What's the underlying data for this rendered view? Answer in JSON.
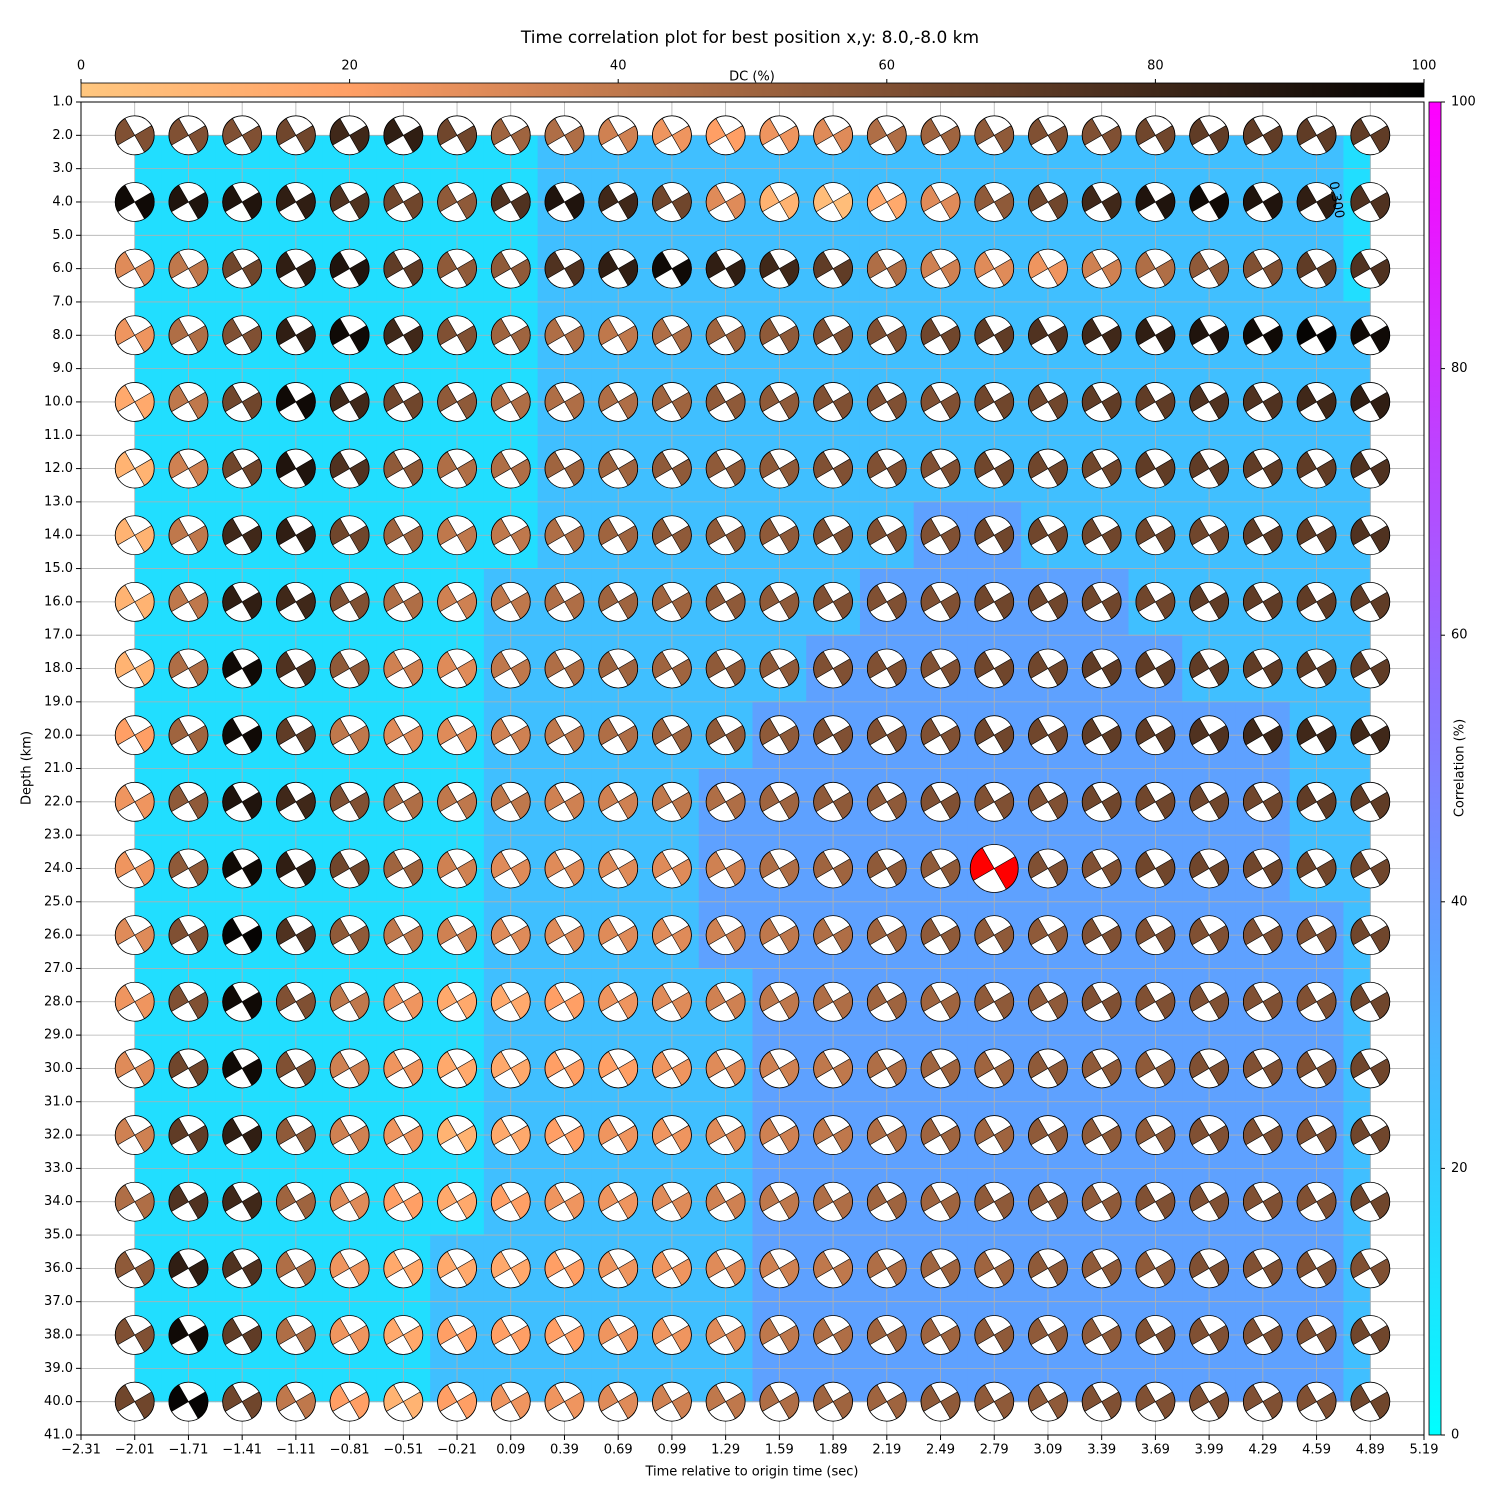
{
  "chart_data": {
    "type": "beachball_grid",
    "title": "Time correlation plot for best position x,y: 8.0,-8.0 km",
    "xlabel": "Time relative to origin time (sec)",
    "ylabel": "Depth (km)",
    "x": [
      -2.01,
      -1.71,
      -1.41,
      -1.11,
      -0.81,
      -0.51,
      -0.21,
      0.09,
      0.39,
      0.69,
      0.99,
      1.29,
      1.59,
      1.89,
      2.19,
      2.49,
      2.79,
      3.09,
      3.39,
      3.69,
      3.99,
      4.29,
      4.59,
      4.89
    ],
    "depths": [
      2,
      4,
      6,
      8,
      10,
      12,
      14,
      16,
      18,
      20,
      22,
      24,
      26,
      28,
      30,
      32,
      34,
      36,
      38,
      40
    ],
    "xlim": [
      -2.31,
      5.19
    ],
    "ylim": [
      1,
      41
    ],
    "y_inverted": true,
    "grid": true,
    "xticks": [
      {
        "value": -2.31,
        "label": "−2.31"
      },
      {
        "value": -2.01,
        "label": "−2.01"
      },
      {
        "value": -1.71,
        "label": "−1.71"
      },
      {
        "value": -1.41,
        "label": "−1.41"
      },
      {
        "value": -1.11,
        "label": "−1.11"
      },
      {
        "value": -0.81,
        "label": "−0.81"
      },
      {
        "value": -0.51,
        "label": "−0.51"
      },
      {
        "value": -0.21,
        "label": "−0.21"
      },
      0.09,
      0.39,
      0.69,
      0.99,
      1.29,
      1.59,
      1.89,
      2.19,
      2.49,
      2.79,
      3.09,
      3.39,
      3.69,
      3.99,
      4.29,
      4.59,
      4.89,
      5.19
    ],
    "yticks": [
      {
        "value": 1,
        "label": "1.0"
      },
      {
        "value": 2,
        "label": "2.0"
      },
      {
        "value": 3,
        "label": "3.0"
      },
      {
        "value": 4,
        "label": "4.0"
      },
      {
        "value": 5,
        "label": "5.0"
      },
      {
        "value": 6,
        "label": "6.0"
      },
      {
        "value": 7,
        "label": "7.0"
      },
      {
        "value": 8,
        "label": "8.0"
      },
      {
        "value": 9,
        "label": "9.0"
      },
      {
        "value": 10,
        "label": "10.0"
      },
      {
        "value": 11,
        "label": "11.0"
      },
      {
        "value": 12,
        "label": "12.0"
      },
      {
        "value": 13,
        "label": "13.0"
      },
      {
        "value": 14,
        "label": "14.0"
      },
      {
        "value": 15,
        "label": "15.0"
      },
      {
        "value": 16,
        "label": "16.0"
      },
      {
        "value": 17,
        "label": "17.0"
      },
      {
        "value": 18,
        "label": "18.0"
      },
      {
        "value": 19,
        "label": "19.0"
      },
      {
        "value": 20,
        "label": "20.0"
      },
      {
        "value": 21,
        "label": "21.0"
      },
      {
        "value": 22,
        "label": "22.0"
      },
      {
        "value": 23,
        "label": "23.0"
      },
      {
        "value": 24,
        "label": "24.0"
      },
      {
        "value": 25,
        "label": "25.0"
      },
      {
        "value": 26,
        "label": "26.0"
      },
      {
        "value": 27,
        "label": "27.0"
      },
      {
        "value": 28,
        "label": "28.0"
      },
      {
        "value": 29,
        "label": "29.0"
      },
      {
        "value": 30,
        "label": "30.0"
      },
      {
        "value": 31,
        "label": "31.0"
      },
      {
        "value": 32,
        "label": "32.0"
      },
      {
        "value": 33,
        "label": "33.0"
      },
      {
        "value": 34,
        "label": "34.0"
      },
      {
        "value": 35,
        "label": "35.0"
      },
      {
        "value": 36,
        "label": "36.0"
      },
      {
        "value": 37,
        "label": "37.0"
      },
      {
        "value": 38,
        "label": "38.0"
      },
      {
        "value": 39,
        "label": "39.0"
      },
      {
        "value": 40,
        "label": "40.0"
      },
      {
        "value": 41,
        "label": "41.0"
      }
    ],
    "dc_colorbar": {
      "label": "DC (%)",
      "colormap": "copper_r",
      "lim": [
        0,
        100
      ],
      "ticks": [
        0,
        20,
        40,
        60,
        80,
        100
      ]
    },
    "corr_colorbar": {
      "label": "Correlation (%)",
      "colormap": "cool",
      "lim": [
        0,
        100
      ],
      "ticks": [
        0,
        20,
        40,
        60,
        80,
        100
      ]
    },
    "highlight": {
      "x": 2.79,
      "depth": 24,
      "color": "#ff0000"
    },
    "annotation": "0.300",
    "dc": [
      [
        60,
        60,
        60,
        65,
        80,
        85,
        65,
        50,
        45,
        35,
        25,
        20,
        25,
        30,
        45,
        50,
        55,
        60,
        60,
        65,
        70,
        70,
        70,
        70
      ],
      [
        95,
        90,
        90,
        85,
        75,
        65,
        55,
        75,
        90,
        80,
        65,
        30,
        10,
        5,
        15,
        30,
        55,
        65,
        80,
        90,
        95,
        90,
        85,
        75
      ],
      [
        30,
        40,
        65,
        85,
        90,
        70,
        55,
        55,
        75,
        85,
        95,
        85,
        80,
        70,
        45,
        35,
        30,
        25,
        35,
        45,
        55,
        60,
        70,
        75
      ],
      [
        25,
        45,
        60,
        85,
        95,
        80,
        60,
        50,
        45,
        40,
        45,
        50,
        55,
        60,
        60,
        65,
        70,
        75,
        80,
        85,
        90,
        95,
        98,
        95
      ],
      [
        15,
        40,
        65,
        95,
        80,
        65,
        55,
        45,
        45,
        45,
        50,
        55,
        55,
        60,
        60,
        60,
        65,
        65,
        70,
        70,
        75,
        75,
        80,
        85
      ],
      [
        10,
        35,
        65,
        90,
        75,
        55,
        45,
        45,
        50,
        50,
        55,
        55,
        55,
        60,
        60,
        60,
        65,
        65,
        65,
        70,
        70,
        70,
        70,
        75
      ],
      [
        10,
        40,
        80,
        85,
        65,
        50,
        40,
        40,
        45,
        50,
        55,
        55,
        55,
        60,
        60,
        60,
        65,
        65,
        65,
        65,
        65,
        70,
        70,
        75
      ],
      [
        10,
        40,
        85,
        80,
        60,
        45,
        35,
        40,
        45,
        50,
        50,
        55,
        55,
        60,
        60,
        60,
        65,
        65,
        65,
        65,
        70,
        70,
        70,
        70
      ],
      [
        10,
        45,
        95,
        75,
        55,
        35,
        30,
        40,
        45,
        50,
        50,
        55,
        55,
        60,
        60,
        60,
        65,
        65,
        70,
        70,
        70,
        70,
        70,
        70
      ],
      [
        20,
        50,
        95,
        70,
        40,
        30,
        30,
        35,
        40,
        45,
        50,
        55,
        55,
        60,
        60,
        60,
        65,
        65,
        70,
        70,
        75,
        80,
        80,
        80
      ],
      [
        25,
        55,
        90,
        80,
        60,
        45,
        40,
        40,
        35,
        35,
        40,
        45,
        50,
        55,
        55,
        60,
        60,
        60,
        65,
        65,
        65,
        65,
        70,
        70
      ],
      [
        25,
        55,
        95,
        85,
        65,
        50,
        35,
        30,
        30,
        30,
        30,
        35,
        45,
        50,
        55,
        55,
        55,
        60,
        60,
        65,
        65,
        65,
        65,
        65
      ],
      [
        30,
        60,
        98,
        75,
        55,
        40,
        35,
        30,
        30,
        30,
        30,
        35,
        40,
        45,
        50,
        55,
        55,
        55,
        60,
        60,
        60,
        60,
        60,
        65
      ],
      [
        25,
        60,
        95,
        60,
        40,
        25,
        15,
        15,
        20,
        25,
        30,
        35,
        40,
        45,
        50,
        50,
        55,
        55,
        60,
        60,
        60,
        60,
        60,
        65
      ],
      [
        30,
        65,
        95,
        60,
        35,
        25,
        15,
        15,
        20,
        20,
        25,
        30,
        35,
        40,
        45,
        50,
        50,
        55,
        55,
        55,
        60,
        60,
        60,
        65
      ],
      [
        35,
        70,
        85,
        55,
        35,
        25,
        10,
        15,
        20,
        25,
        25,
        30,
        35,
        40,
        45,
        50,
        50,
        55,
        55,
        55,
        60,
        60,
        60,
        65
      ],
      [
        45,
        75,
        80,
        50,
        30,
        20,
        15,
        20,
        25,
        25,
        30,
        35,
        40,
        45,
        50,
        50,
        55,
        55,
        55,
        60,
        60,
        60,
        60,
        65
      ],
      [
        55,
        85,
        75,
        45,
        25,
        15,
        15,
        15,
        20,
        25,
        25,
        30,
        35,
        40,
        45,
        50,
        50,
        55,
        55,
        55,
        60,
        60,
        60,
        60
      ],
      [
        60,
        95,
        70,
        45,
        25,
        15,
        20,
        20,
        20,
        25,
        25,
        30,
        40,
        45,
        50,
        50,
        55,
        55,
        55,
        60,
        60,
        60,
        60,
        65
      ],
      [
        65,
        98,
        65,
        40,
        20,
        10,
        20,
        25,
        25,
        30,
        35,
        40,
        45,
        50,
        50,
        55,
        55,
        55,
        60,
        60,
        60,
        60,
        60,
        65
      ]
    ],
    "correlation": [
      [
        13,
        13,
        13,
        13,
        13,
        13,
        13,
        13,
        25,
        25,
        25,
        25,
        25,
        25,
        25,
        25,
        25,
        25,
        25,
        25,
        25,
        25,
        25,
        13
      ],
      [
        13,
        13,
        13,
        13,
        13,
        13,
        13,
        13,
        25,
        25,
        25,
        25,
        25,
        25,
        25,
        25,
        25,
        25,
        25,
        25,
        25,
        25,
        25,
        13
      ],
      [
        13,
        13,
        13,
        13,
        13,
        13,
        13,
        13,
        25,
        25,
        25,
        25,
        25,
        25,
        25,
        25,
        25,
        25,
        25,
        25,
        25,
        25,
        25,
        13
      ],
      [
        13,
        13,
        13,
        13,
        13,
        13,
        13,
        13,
        25,
        25,
        25,
        25,
        25,
        25,
        25,
        25,
        25,
        25,
        25,
        25,
        25,
        25,
        25,
        25
      ],
      [
        13,
        13,
        13,
        13,
        13,
        13,
        13,
        13,
        25,
        25,
        25,
        25,
        25,
        25,
        25,
        25,
        25,
        25,
        25,
        25,
        25,
        25,
        25,
        25
      ],
      [
        13,
        13,
        13,
        13,
        13,
        13,
        13,
        13,
        25,
        25,
        25,
        25,
        25,
        25,
        25,
        25,
        25,
        25,
        25,
        25,
        25,
        25,
        25,
        25
      ],
      [
        13,
        13,
        13,
        13,
        13,
        13,
        13,
        13,
        25,
        25,
        25,
        25,
        25,
        25,
        25,
        37,
        37,
        25,
        25,
        25,
        25,
        25,
        25,
        25
      ],
      [
        13,
        13,
        13,
        13,
        13,
        13,
        13,
        25,
        25,
        25,
        25,
        25,
        25,
        25,
        37,
        37,
        37,
        37,
        37,
        25,
        25,
        25,
        25,
        25
      ],
      [
        13,
        13,
        13,
        13,
        13,
        13,
        13,
        25,
        25,
        25,
        25,
        25,
        25,
        37,
        37,
        37,
        37,
        37,
        37,
        37,
        25,
        25,
        25,
        25
      ],
      [
        13,
        13,
        13,
        13,
        13,
        13,
        13,
        25,
        25,
        25,
        25,
        25,
        37,
        37,
        37,
        37,
        37,
        37,
        37,
        37,
        37,
        37,
        25,
        25
      ],
      [
        13,
        13,
        13,
        13,
        13,
        13,
        13,
        25,
        25,
        25,
        25,
        37,
        37,
        37,
        37,
        37,
        37,
        37,
        37,
        37,
        37,
        37,
        25,
        25
      ],
      [
        13,
        13,
        13,
        13,
        13,
        13,
        13,
        25,
        25,
        25,
        25,
        37,
        37,
        37,
        37,
        37,
        37,
        37,
        37,
        37,
        37,
        37,
        25,
        25
      ],
      [
        13,
        13,
        13,
        13,
        13,
        13,
        13,
        25,
        25,
        25,
        25,
        37,
        37,
        37,
        37,
        37,
        37,
        37,
        37,
        37,
        37,
        37,
        37,
        25
      ],
      [
        13,
        13,
        13,
        13,
        13,
        13,
        13,
        25,
        25,
        25,
        25,
        25,
        37,
        37,
        37,
        37,
        37,
        37,
        37,
        37,
        37,
        37,
        37,
        25
      ],
      [
        13,
        13,
        13,
        13,
        13,
        13,
        13,
        25,
        25,
        25,
        25,
        25,
        37,
        37,
        37,
        37,
        37,
        37,
        37,
        37,
        37,
        37,
        37,
        25
      ],
      [
        13,
        13,
        13,
        13,
        13,
        13,
        13,
        25,
        25,
        25,
        25,
        25,
        37,
        37,
        37,
        37,
        37,
        37,
        37,
        37,
        37,
        37,
        37,
        25
      ],
      [
        13,
        13,
        13,
        13,
        13,
        13,
        13,
        25,
        25,
        25,
        25,
        25,
        37,
        37,
        37,
        37,
        37,
        37,
        37,
        37,
        37,
        37,
        37,
        25
      ],
      [
        13,
        13,
        13,
        13,
        13,
        13,
        25,
        25,
        25,
        25,
        25,
        25,
        37,
        37,
        37,
        37,
        37,
        37,
        37,
        37,
        37,
        37,
        37,
        25
      ],
      [
        13,
        13,
        13,
        13,
        13,
        13,
        25,
        25,
        25,
        25,
        25,
        25,
        37,
        37,
        37,
        37,
        37,
        37,
        37,
        37,
        37,
        37,
        37,
        25
      ],
      [
        13,
        13,
        13,
        13,
        13,
        13,
        25,
        25,
        25,
        25,
        25,
        25,
        37,
        37,
        37,
        37,
        37,
        37,
        37,
        37,
        37,
        37,
        37,
        25
      ]
    ]
  }
}
